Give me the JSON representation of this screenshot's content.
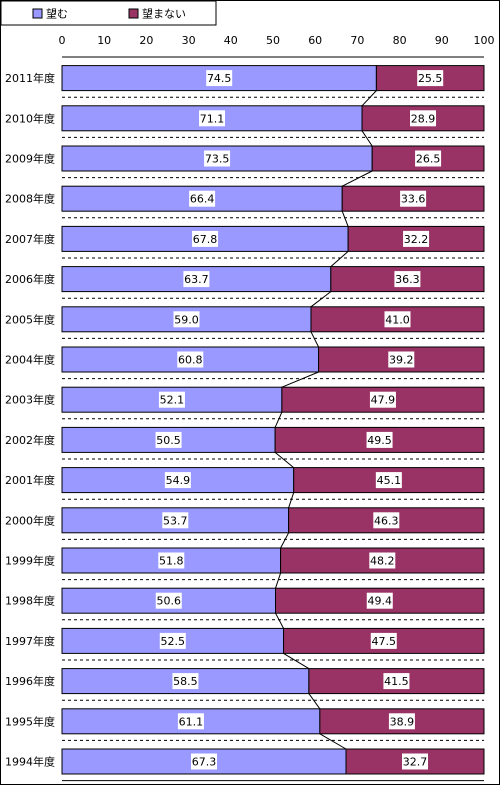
{
  "colors": {
    "want": "#9999ff",
    "not_want": "#993366",
    "grid": "#000000",
    "background": "#ffffff"
  },
  "legend": {
    "want_label": "望む",
    "not_want_label": "望まない"
  },
  "chart_data": {
    "type": "bar",
    "orientation": "horizontal",
    "stacked": true,
    "categories": [
      "2011年度",
      "2010年度",
      "2009年度",
      "2008年度",
      "2007年度",
      "2006年度",
      "2005年度",
      "2004年度",
      "2003年度",
      "2002年度",
      "2001年度",
      "2000年度",
      "1999年度",
      "1998年度",
      "1997年度",
      "1996年度",
      "1995年度",
      "1994年度"
    ],
    "series": [
      {
        "name": "望む",
        "values": [
          74.5,
          71.1,
          73.5,
          66.4,
          67.8,
          63.7,
          59.0,
          60.8,
          52.1,
          50.5,
          54.9,
          53.7,
          51.8,
          50.6,
          52.5,
          58.5,
          61.1,
          67.3
        ]
      },
      {
        "name": "望まない",
        "values": [
          25.5,
          28.9,
          26.5,
          33.6,
          32.2,
          36.3,
          41.0,
          39.2,
          47.9,
          49.5,
          45.1,
          46.3,
          48.2,
          49.4,
          47.5,
          41.5,
          38.9,
          32.7
        ]
      }
    ],
    "value_labels": {
      "want": [
        "74.5",
        "71.1",
        "73.5",
        "66.4",
        "67.8",
        "63.7",
        "59.0",
        "60.8",
        "52.1",
        "50.5",
        "54.9",
        "53.7",
        "51.8",
        "50.6",
        "52.5",
        "58.5",
        "61.1",
        "67.3"
      ],
      "not_want": [
        "25.5",
        "28.9",
        "26.5",
        "33.6",
        "32.2",
        "36.3",
        "41.0",
        "39.2",
        "47.9",
        "49.5",
        "45.1",
        "46.3",
        "48.2",
        "49.4",
        "47.5",
        "41.5",
        "38.9",
        "32.7"
      ]
    },
    "xticks": [
      "0",
      "10",
      "20",
      "30",
      "40",
      "50",
      "60",
      "70",
      "80",
      "90",
      "100"
    ],
    "xlim": [
      0,
      100
    ],
    "legend_position": "top-left",
    "grid": "dashed horizontal separators",
    "series_lines": true
  }
}
